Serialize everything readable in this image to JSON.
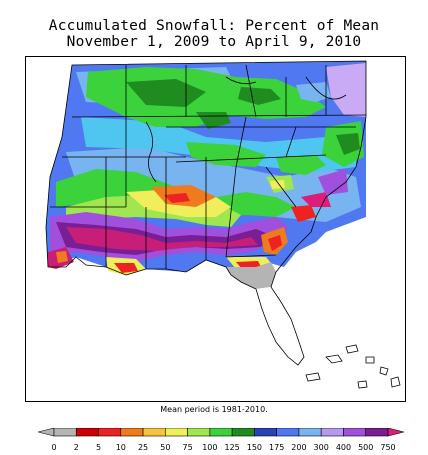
{
  "title_line1": "Accumulated Snowfall: Percent of Mean",
  "title_line2": "November 1, 2009 to April 9, 2010",
  "footnote": "Mean period is 1981-2010.",
  "legend": {
    "ticks": [
      "0",
      "2",
      "5",
      "10",
      "25",
      "50",
      "75",
      "100",
      "125",
      "150",
      "175",
      "200",
      "300",
      "400",
      "500",
      "750"
    ],
    "colors": [
      "#b4b4b4",
      "#b4b4b4",
      "#cc0000",
      "#ee2222",
      "#f07a1e",
      "#f5c43c",
      "#f0ee5a",
      "#a0e650",
      "#3cd23c",
      "#1e8c1e",
      "#2844b4",
      "#5078f0",
      "#78b4f0",
      "#b49bf0",
      "#a050dc",
      "#7a1e96",
      "#dc1e78"
    ]
  },
  "map": {
    "palette": {
      "blue": "#5078f0",
      "lightblue": "#78b4f0",
      "lavender": "#c8aaf5",
      "cyan": "#4ec6f0",
      "green": "#3cd23c",
      "darkgreen": "#1e8c1e",
      "lime": "#a0e650",
      "yellow": "#f0ee5a",
      "orange": "#f07a1e",
      "red": "#ee2222",
      "purple": "#a050dc",
      "darkpurple": "#7a1e96",
      "magenta": "#c81e78",
      "gray": "#b4b4b4",
      "land": "#ffffff"
    }
  }
}
